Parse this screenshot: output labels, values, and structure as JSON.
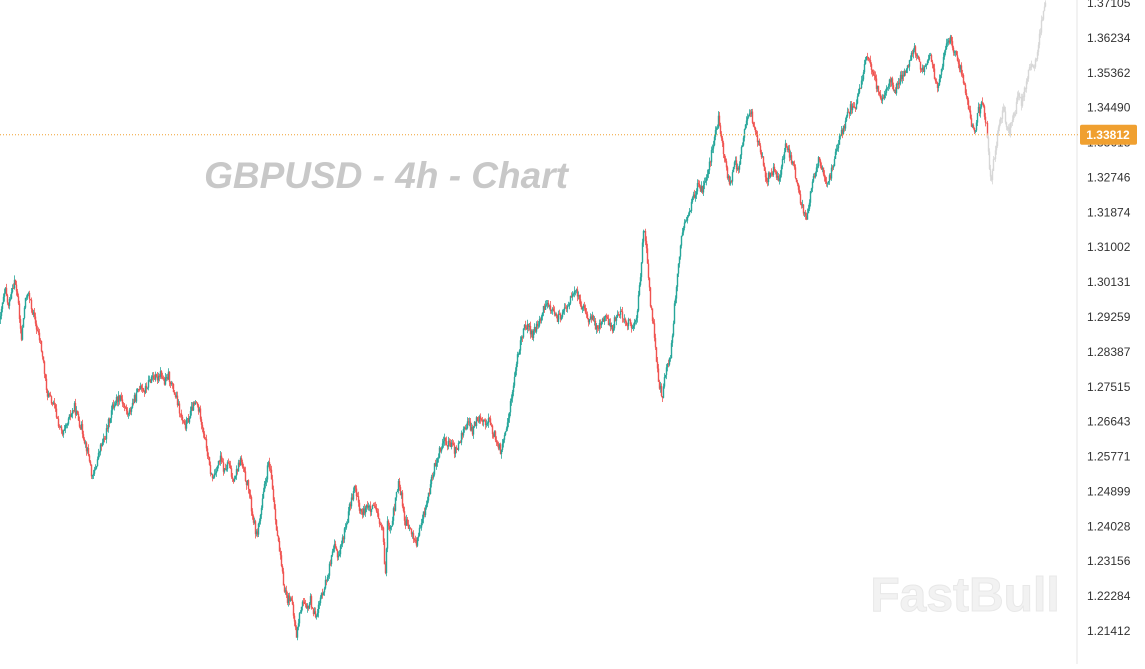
{
  "chart_data": {
    "type": "candlestick",
    "title": "GBPUSD - 4h - Chart",
    "symbol": "GBPUSD",
    "timeframe": "4h",
    "y_ticks": [
      "1.37105",
      "1.36234",
      "1.35362",
      "1.34490",
      "1.33618",
      "1.32746",
      "1.31874",
      "1.31002",
      "1.30131",
      "1.29259",
      "1.28387",
      "1.27515",
      "1.26643",
      "1.25771",
      "1.24899",
      "1.24028",
      "1.23156",
      "1.22284",
      "1.21412"
    ],
    "ylim": [
      1.208,
      1.372
    ],
    "current_price": "1.33812",
    "price_path": [
      [
        0,
        1.292
      ],
      [
        2,
        1.296
      ],
      [
        5,
        1.299
      ],
      [
        8,
        1.295
      ],
      [
        11,
        1.2995
      ],
      [
        14,
        1.3015
      ],
      [
        17,
        1.298
      ],
      [
        19,
        1.292
      ],
      [
        21,
        1.287
      ],
      [
        24,
        1.295
      ],
      [
        27,
        1.299
      ],
      [
        30,
        1.296
      ],
      [
        33,
        1.293
      ],
      [
        36,
        1.29
      ],
      [
        40,
        1.286
      ],
      [
        43,
        1.281
      ],
      [
        46,
        1.274
      ],
      [
        50,
        1.272
      ],
      [
        54,
        1.27
      ],
      [
        58,
        1.266
      ],
      [
        62,
        1.263
      ],
      [
        66,
        1.265
      ],
      [
        70,
        1.268
      ],
      [
        74,
        1.27
      ],
      [
        78,
        1.267
      ],
      [
        82,
        1.264
      ],
      [
        86,
        1.26
      ],
      [
        89,
        1.257
      ],
      [
        92,
        1.252
      ],
      [
        96,
        1.256
      ],
      [
        100,
        1.26
      ],
      [
        104,
        1.262
      ],
      [
        108,
        1.266
      ],
      [
        112,
        1.27
      ],
      [
        116,
        1.272
      ],
      [
        120,
        1.273
      ],
      [
        124,
        1.27
      ],
      [
        128,
        1.268
      ],
      [
        132,
        1.271
      ],
      [
        136,
        1.273
      ],
      [
        140,
        1.276
      ],
      [
        144,
        1.274
      ],
      [
        148,
        1.276
      ],
      [
        152,
        1.278
      ],
      [
        156,
        1.277
      ],
      [
        160,
        1.279
      ],
      [
        164,
        1.276
      ],
      [
        168,
        1.278
      ],
      [
        172,
        1.275
      ],
      [
        176,
        1.272
      ],
      [
        180,
        1.268
      ],
      [
        184,
        1.265
      ],
      [
        188,
        1.267
      ],
      [
        192,
        1.27
      ],
      [
        196,
        1.271
      ],
      [
        200,
        1.268
      ],
      [
        203,
        1.264
      ],
      [
        206,
        1.26
      ],
      [
        209,
        1.255
      ],
      [
        212,
        1.252
      ],
      [
        216,
        1.255
      ],
      [
        220,
        1.257
      ],
      [
        224,
        1.254
      ],
      [
        228,
        1.256
      ],
      [
        232,
        1.252
      ],
      [
        236,
        1.254
      ],
      [
        240,
        1.257
      ],
      [
        244,
        1.253
      ],
      [
        248,
        1.25
      ],
      [
        252,
        1.243
      ],
      [
        256,
        1.238
      ],
      [
        260,
        1.243
      ],
      [
        264,
        1.25
      ],
      [
        268,
        1.256
      ],
      [
        271,
        1.252
      ],
      [
        274,
        1.245
      ],
      [
        277,
        1.238
      ],
      [
        280,
        1.232
      ],
      [
        283,
        1.226
      ],
      [
        287,
        1.222
      ],
      [
        290,
        1.223
      ],
      [
        293,
        1.218
      ],
      [
        296,
        1.213
      ],
      [
        299,
        1.218
      ],
      [
        302,
        1.222
      ],
      [
        306,
        1.219
      ],
      [
        310,
        1.222
      ],
      [
        314,
        1.218
      ],
      [
        318,
        1.22
      ],
      [
        322,
        1.224
      ],
      [
        326,
        1.227
      ],
      [
        330,
        1.231
      ],
      [
        334,
        1.235
      ],
      [
        338,
        1.233
      ],
      [
        342,
        1.237
      ],
      [
        346,
        1.241
      ],
      [
        350,
        1.246
      ],
      [
        354,
        1.25
      ],
      [
        358,
        1.246
      ],
      [
        362,
        1.243
      ],
      [
        366,
        1.246
      ],
      [
        370,
        1.244
      ],
      [
        374,
        1.245
      ],
      [
        378,
        1.242
      ],
      [
        382,
        1.239
      ],
      [
        385,
        1.228
      ],
      [
        387,
        1.242
      ],
      [
        390,
        1.24
      ],
      [
        394,
        1.245
      ],
      [
        398,
        1.251
      ],
      [
        401,
        1.248
      ],
      [
        404,
        1.242
      ],
      [
        408,
        1.24
      ],
      [
        412,
        1.238
      ],
      [
        416,
        1.236
      ],
      [
        420,
        1.24
      ],
      [
        424,
        1.244
      ],
      [
        428,
        1.248
      ],
      [
        432,
        1.253
      ],
      [
        436,
        1.257
      ],
      [
        440,
        1.26
      ],
      [
        444,
        1.262
      ],
      [
        448,
        1.261
      ],
      [
        452,
        1.26
      ],
      [
        456,
        1.259
      ],
      [
        460,
        1.262
      ],
      [
        464,
        1.265
      ],
      [
        468,
        1.266
      ],
      [
        472,
        1.264
      ],
      [
        476,
        1.267
      ],
      [
        480,
        1.268
      ],
      [
        484,
        1.266
      ],
      [
        488,
        1.267
      ],
      [
        492,
        1.264
      ],
      [
        496,
        1.262
      ],
      [
        500,
        1.259
      ],
      [
        504,
        1.262
      ],
      [
        508,
        1.268
      ],
      [
        512,
        1.274
      ],
      [
        516,
        1.281
      ],
      [
        520,
        1.286
      ],
      [
        524,
        1.291
      ],
      [
        528,
        1.29
      ],
      [
        532,
        1.288
      ],
      [
        536,
        1.29
      ],
      [
        540,
        1.292
      ],
      [
        544,
        1.295
      ],
      [
        548,
        1.296
      ],
      [
        552,
        1.294
      ],
      [
        556,
        1.292
      ],
      [
        560,
        1.293
      ],
      [
        564,
        1.294
      ],
      [
        568,
        1.296
      ],
      [
        572,
        1.298
      ],
      [
        576,
        1.299
      ],
      [
        580,
        1.296
      ],
      [
        584,
        1.294
      ],
      [
        588,
        1.292
      ],
      [
        592,
        1.292
      ],
      [
        596,
        1.29
      ],
      [
        600,
        1.291
      ],
      [
        604,
        1.293
      ],
      [
        608,
        1.291
      ],
      [
        612,
        1.29
      ],
      [
        616,
        1.293
      ],
      [
        620,
        1.294
      ],
      [
        624,
        1.292
      ],
      [
        628,
        1.291
      ],
      [
        632,
        1.29
      ],
      [
        636,
        1.292
      ],
      [
        640,
        1.303
      ],
      [
        643,
        1.315
      ],
      [
        646,
        1.309
      ],
      [
        650,
        1.296
      ],
      [
        654,
        1.288
      ],
      [
        658,
        1.276
      ],
      [
        662,
        1.273
      ],
      [
        666,
        1.28
      ],
      [
        670,
        1.283
      ],
      [
        674,
        1.295
      ],
      [
        678,
        1.306
      ],
      [
        682,
        1.314
      ],
      [
        686,
        1.317
      ],
      [
        690,
        1.32
      ],
      [
        694,
        1.323
      ],
      [
        698,
        1.326
      ],
      [
        702,
        1.324
      ],
      [
        706,
        1.327
      ],
      [
        710,
        1.332
      ],
      [
        714,
        1.338
      ],
      [
        718,
        1.342
      ],
      [
        722,
        1.336
      ],
      [
        726,
        1.329
      ],
      [
        730,
        1.326
      ],
      [
        734,
        1.331
      ],
      [
        738,
        1.33
      ],
      [
        742,
        1.336
      ],
      [
        746,
        1.342
      ],
      [
        750,
        1.344
      ],
      [
        754,
        1.34
      ],
      [
        758,
        1.336
      ],
      [
        762,
        1.332
      ],
      [
        766,
        1.327
      ],
      [
        770,
        1.328
      ],
      [
        774,
        1.33
      ],
      [
        778,
        1.326
      ],
      [
        782,
        1.332
      ],
      [
        786,
        1.336
      ],
      [
        790,
        1.332
      ],
      [
        794,
        1.329
      ],
      [
        798,
        1.324
      ],
      [
        802,
        1.32
      ],
      [
        806,
        1.318
      ],
      [
        810,
        1.323
      ],
      [
        814,
        1.328
      ],
      [
        818,
        1.332
      ],
      [
        822,
        1.329
      ],
      [
        826,
        1.326
      ],
      [
        830,
        1.328
      ],
      [
        834,
        1.332
      ],
      [
        838,
        1.336
      ],
      [
        842,
        1.339
      ],
      [
        846,
        1.342
      ],
      [
        850,
        1.345
      ],
      [
        854,
        1.344
      ],
      [
        858,
        1.348
      ],
      [
        862,
        1.353
      ],
      [
        866,
        1.358
      ],
      [
        870,
        1.356
      ],
      [
        874,
        1.352
      ],
      [
        878,
        1.349
      ],
      [
        882,
        1.347
      ],
      [
        886,
        1.35
      ],
      [
        890,
        1.352
      ],
      [
        894,
        1.349
      ],
      [
        898,
        1.351
      ],
      [
        902,
        1.353
      ],
      [
        906,
        1.355
      ],
      [
        910,
        1.357
      ],
      [
        914,
        1.36
      ],
      [
        918,
        1.357
      ],
      [
        922,
        1.354
      ],
      [
        926,
        1.356
      ],
      [
        930,
        1.358
      ],
      [
        934,
        1.353
      ],
      [
        938,
        1.35
      ],
      [
        942,
        1.356
      ],
      [
        946,
        1.36
      ],
      [
        950,
        1.362
      ],
      [
        954,
        1.359
      ],
      [
        958,
        1.356
      ],
      [
        962,
        1.353
      ],
      [
        966,
        1.348
      ],
      [
        970,
        1.342
      ],
      [
        974,
        1.338
      ],
      [
        978,
        1.344
      ],
      [
        982,
        1.346
      ],
      [
        985,
        1.342
      ],
      [
        987,
        1.338
      ]
    ],
    "projection_path": [
      [
        987,
        1.338
      ],
      [
        989,
        1.33
      ],
      [
        991,
        1.327
      ],
      [
        994,
        1.333
      ],
      [
        997,
        1.338
      ],
      [
        1000,
        1.342
      ],
      [
        1003,
        1.344
      ],
      [
        1006,
        1.341
      ],
      [
        1009,
        1.339
      ],
      [
        1012,
        1.342
      ],
      [
        1015,
        1.344
      ],
      [
        1018,
        1.348
      ],
      [
        1021,
        1.346
      ],
      [
        1024,
        1.349
      ],
      [
        1027,
        1.353
      ],
      [
        1030,
        1.356
      ],
      [
        1033,
        1.354
      ],
      [
        1036,
        1.358
      ],
      [
        1039,
        1.363
      ],
      [
        1042,
        1.368
      ],
      [
        1045,
        1.3715
      ]
    ],
    "watermark": "FastBull",
    "colors": {
      "up": "#26a69a",
      "down": "#ef5350",
      "wick": "#555555",
      "projection": "#d7d7d7",
      "price_line": "#f0a030",
      "price_label_bg": "#f0a030",
      "axis_text": "#333333",
      "title_text": "#c8c8c8"
    }
  }
}
